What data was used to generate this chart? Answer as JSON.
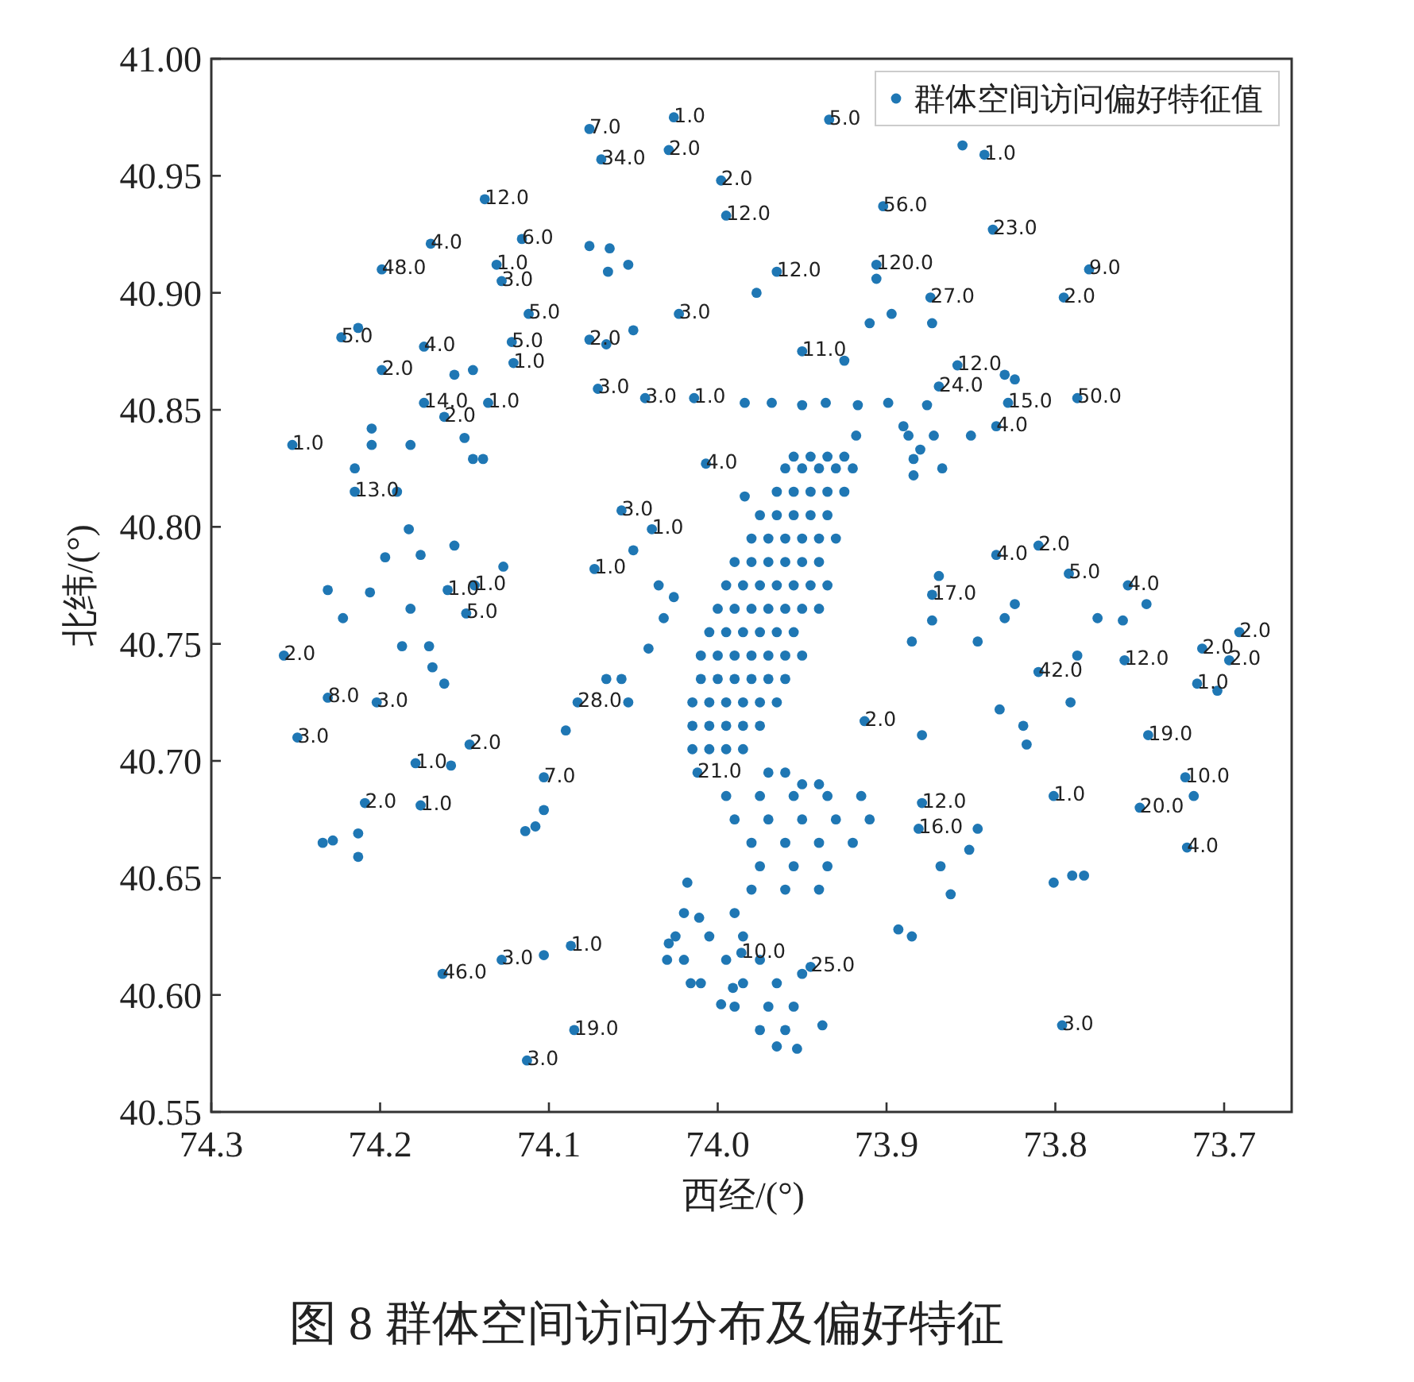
{
  "chart_data": {
    "type": "scatter",
    "xlabel": "西经/(°)",
    "ylabel": "北纬/(°)",
    "annotations": [
      "图 8 群体空间访问分布及偏好特征",
      {
        "text": "7.0",
        "x": 74.076,
        "y": 40.97
      },
      {
        "text": "1.0",
        "x": 74.026,
        "y": 40.975
      },
      {
        "text": "34.0",
        "x": 74.069,
        "y": 40.957
      },
      {
        "text": "2.0",
        "x": 74.029,
        "y": 40.961
      },
      {
        "text": "2.0",
        "x": 73.998,
        "y": 40.948
      },
      {
        "text": "12.0",
        "x": 73.995,
        "y": 40.933
      },
      {
        "text": "12.0",
        "x": 74.138,
        "y": 40.94
      },
      {
        "text": "4.0",
        "x": 74.17,
        "y": 40.921
      },
      {
        "text": "6.0",
        "x": 74.116,
        "y": 40.923
      },
      {
        "text": "48.0",
        "x": 74.199,
        "y": 40.91
      },
      {
        "text": "1.0",
        "x": 74.131,
        "y": 40.912
      },
      {
        "text": "3.0",
        "x": 74.128,
        "y": 40.905
      },
      {
        "text": "5.0",
        "x": 74.223,
        "y": 40.881
      },
      {
        "text": "4.0",
        "x": 74.174,
        "y": 40.877
      },
      {
        "text": "2.0",
        "x": 74.199,
        "y": 40.867
      },
      {
        "text": "5.0",
        "x": 74.112,
        "y": 40.891
      },
      {
        "text": "5.0",
        "x": 74.122,
        "y": 40.879
      },
      {
        "text": "1.0",
        "x": 74.121,
        "y": 40.87
      },
      {
        "text": "2.0",
        "x": 74.076,
        "y": 40.88
      },
      {
        "text": "3.0",
        "x": 74.023,
        "y": 40.891
      },
      {
        "text": "14.0",
        "x": 74.174,
        "y": 40.853
      },
      {
        "text": "2.0",
        "x": 74.162,
        "y": 40.847
      },
      {
        "text": "1.0",
        "x": 74.136,
        "y": 40.853
      },
      {
        "text": "3.0",
        "x": 74.071,
        "y": 40.859
      },
      {
        "text": "3.0",
        "x": 74.043,
        "y": 40.855
      },
      {
        "text": "1.0",
        "x": 74.014,
        "y": 40.855
      },
      {
        "text": "5.0",
        "x": 73.934,
        "y": 40.974
      },
      {
        "text": "1.0",
        "x": 73.842,
        "y": 40.959
      },
      {
        "text": "56.0",
        "x": 73.902,
        "y": 40.937
      },
      {
        "text": "23.0",
        "x": 73.837,
        "y": 40.927
      },
      {
        "text": "9.0",
        "x": 73.78,
        "y": 40.91
      },
      {
        "text": "2.0",
        "x": 73.795,
        "y": 40.898
      },
      {
        "text": "120.0",
        "x": 73.906,
        "y": 40.912
      },
      {
        "text": "12.0",
        "x": 73.965,
        "y": 40.909
      },
      {
        "text": "27.0",
        "x": 73.874,
        "y": 40.898
      },
      {
        "text": "11.0",
        "x": 73.95,
        "y": 40.875
      },
      {
        "text": "24.0",
        "x": 73.869,
        "y": 40.86
      },
      {
        "text": "15.0",
        "x": 73.828,
        "y": 40.853
      },
      {
        "text": "50.0",
        "x": 73.787,
        "y": 40.855
      },
      {
        "text": "12.0",
        "x": 73.858,
        "y": 40.869
      },
      {
        "text": "4.0",
        "x": 73.835,
        "y": 40.843
      },
      {
        "text": "1.0",
        "x": 74.252,
        "y": 40.835
      },
      {
        "text": "4.0",
        "x": 74.007,
        "y": 40.827
      },
      {
        "text": "13.0",
        "x": 74.215,
        "y": 40.815
      },
      {
        "text": "1.0",
        "x": 74.16,
        "y": 40.773
      },
      {
        "text": "1.0",
        "x": 74.144,
        "y": 40.775
      },
      {
        "text": "5.0",
        "x": 74.149,
        "y": 40.763
      },
      {
        "text": "2.0",
        "x": 74.257,
        "y": 40.745
      },
      {
        "text": "8.0",
        "x": 74.231,
        "y": 40.727
      },
      {
        "text": "3.0",
        "x": 74.202,
        "y": 40.725
      },
      {
        "text": "3.0",
        "x": 74.249,
        "y": 40.71
      },
      {
        "text": "1.0",
        "x": 74.179,
        "y": 40.699
      },
      {
        "text": "2.0",
        "x": 74.147,
        "y": 40.707
      },
      {
        "text": "7.0",
        "x": 74.103,
        "y": 40.693
      },
      {
        "text": "3.0",
        "x": 74.057,
        "y": 40.807
      },
      {
        "text": "1.0",
        "x": 74.039,
        "y": 40.799
      },
      {
        "text": "1.0",
        "x": 74.073,
        "y": 40.782
      },
      {
        "text": "28.0",
        "x": 74.083,
        "y": 40.725
      },
      {
        "text": "21.0",
        "x": 74.012,
        "y": 40.695
      },
      {
        "text": "4.0",
        "x": 73.835,
        "y": 40.788
      },
      {
        "text": "2.0",
        "x": 73.81,
        "y": 40.792
      },
      {
        "text": "5.0",
        "x": 73.792,
        "y": 40.78
      },
      {
        "text": "17.0",
        "x": 73.873,
        "y": 40.771
      },
      {
        "text": "4.0",
        "x": 73.757,
        "y": 40.775
      },
      {
        "text": "2.0",
        "x": 73.691,
        "y": 40.755
      },
      {
        "text": "2.0",
        "x": 73.713,
        "y": 40.748
      },
      {
        "text": "2.0",
        "x": 73.697,
        "y": 40.743
      },
      {
        "text": "1.0",
        "x": 73.716,
        "y": 40.733
      },
      {
        "text": "12.0",
        "x": 73.759,
        "y": 40.743
      },
      {
        "text": "42.0",
        "x": 73.81,
        "y": 40.738
      },
      {
        "text": "19.0",
        "x": 73.745,
        "y": 40.711
      },
      {
        "text": "2.0",
        "x": 73.913,
        "y": 40.717
      },
      {
        "text": "10.0",
        "x": 73.723,
        "y": 40.693
      },
      {
        "text": "20.0",
        "x": 73.75,
        "y": 40.68
      },
      {
        "text": "4.0",
        "x": 73.722,
        "y": 40.663
      },
      {
        "text": "1.0",
        "x": 73.801,
        "y": 40.685
      },
      {
        "text": "12.0",
        "x": 73.879,
        "y": 40.682
      },
      {
        "text": "16.0",
        "x": 73.881,
        "y": 40.671
      },
      {
        "text": "3.0",
        "x": 73.796,
        "y": 40.587
      },
      {
        "text": "2.0",
        "x": 74.209,
        "y": 40.682
      },
      {
        "text": "1.0",
        "x": 74.176,
        "y": 40.681
      },
      {
        "text": "46.0",
        "x": 74.163,
        "y": 40.609
      },
      {
        "text": "3.0",
        "x": 74.128,
        "y": 40.615
      },
      {
        "text": "1.0",
        "x": 74.087,
        "y": 40.621
      },
      {
        "text": "19.0",
        "x": 74.085,
        "y": 40.585
      },
      {
        "text": "3.0",
        "x": 74.113,
        "y": 40.572
      },
      {
        "text": "10.0",
        "x": 73.986,
        "y": 40.618
      },
      {
        "text": "25.0",
        "x": 73.945,
        "y": 40.612
      }
    ],
    "xlim": [
      74.3,
      73.66
    ],
    "ylim": [
      40.55,
      41.0
    ],
    "xticks": [
      74.3,
      74.2,
      74.1,
      {
        "value": 74.0,
        "label": "74.0"
      },
      73.9,
      73.8,
      73.7
    ],
    "yticks": [
      {
        "value": 41.0,
        "label": "41.00"
      },
      40.95,
      {
        "value": 40.9,
        "label": "40.90"
      },
      40.85,
      {
        "value": 40.8,
        "label": "40.80"
      },
      40.75,
      {
        "value": 40.7,
        "label": "40.70"
      },
      40.65,
      {
        "value": 40.6,
        "label": "40.60"
      },
      40.55
    ],
    "legend": "top right",
    "marker": "circle",
    "series": [
      {
        "name": "群体空间访问偏好特征值",
        "color": "#1f77b4",
        "x": [
          74.076,
          74.026,
          74.069,
          74.029,
          73.998,
          73.995,
          74.138,
          74.17,
          74.116,
          74.199,
          74.131,
          74.128,
          74.076,
          74.064,
          74.065,
          74.053,
          74.223,
          74.213,
          74.174,
          74.199,
          74.112,
          74.122,
          74.121,
          74.156,
          74.145,
          74.076,
          74.066,
          74.05,
          74.023,
          74.174,
          74.162,
          74.136,
          74.071,
          74.043,
          74.014,
          73.984,
          73.934,
          73.855,
          73.842,
          73.902,
          73.837,
          73.78,
          73.795,
          73.906,
          73.906,
          73.965,
          73.977,
          73.874,
          73.897,
          73.91,
          73.873,
          73.925,
          73.95,
          73.83,
          73.824,
          73.869,
          73.828,
          73.787,
          73.858,
          73.968,
          73.95,
          73.936,
          73.917,
          73.899,
          73.876,
          73.89,
          73.88,
          73.867,
          73.835,
          74.252,
          74.007,
          73.984,
          74.215,
          74.215,
          74.19,
          74.205,
          74.205,
          74.182,
          74.15,
          74.145,
          74.139,
          74.183,
          74.197,
          74.176,
          74.156,
          74.127,
          74.231,
          74.206,
          74.222,
          74.182,
          74.16,
          74.144,
          74.149,
          74.257,
          74.187,
          74.171,
          74.169,
          74.162,
          74.231,
          74.202,
          74.249,
          74.179,
          74.158,
          74.147,
          74.103,
          74.057,
          74.039,
          74.05,
          74.073,
          74.035,
          74.026,
          74.032,
          74.041,
          74.066,
          74.057,
          74.083,
          74.053,
          74.09,
          74.012,
          73.918,
          73.887,
          73.872,
          73.85,
          73.884,
          73.884,
          73.835,
          73.81,
          73.792,
          73.869,
          73.873,
          73.824,
          73.83,
          73.873,
          73.846,
          73.885,
          73.775,
          73.76,
          73.746,
          73.757,
          73.691,
          73.713,
          73.697,
          73.716,
          73.704,
          73.759,
          73.787,
          73.81,
          73.791,
          73.745,
          73.833,
          73.819,
          73.817,
          73.913,
          73.879,
          73.723,
          73.75,
          73.718,
          73.722,
          73.801,
          73.879,
          73.881,
          73.846,
          73.851,
          73.801,
          73.79,
          73.783,
          73.796,
          73.893,
          73.885,
          73.868,
          73.862,
          73.95,
          73.938,
          73.953,
          74.209,
          74.176,
          74.234,
          74.228,
          74.213,
          74.213,
          74.103,
          74.108,
          74.114,
          74.163,
          74.128,
          74.103,
          74.087,
          74.085,
          74.113,
          74.018,
          74.011,
          74.029,
          74.03,
          74.016,
          73.998,
          73.986,
          73.945,
          73.991
        ],
        "values": [
          40.97,
          40.975,
          40.957,
          40.961,
          40.948,
          40.933,
          40.94,
          40.921,
          40.923,
          40.91,
          40.912,
          40.905,
          40.92,
          40.919,
          40.909,
          40.912,
          40.881,
          40.885,
          40.877,
          40.867,
          40.891,
          40.879,
          40.87,
          40.865,
          40.867,
          40.88,
          40.878,
          40.884,
          40.891,
          40.853,
          40.847,
          40.853,
          40.859,
          40.855,
          40.855,
          40.853,
          40.974,
          40.963,
          40.959,
          40.937,
          40.927,
          40.91,
          40.898,
          40.912,
          40.906,
          40.909,
          40.9,
          40.898,
          40.891,
          40.887,
          40.887,
          40.871,
          40.875,
          40.865,
          40.863,
          40.86,
          40.853,
          40.855,
          40.869,
          40.853,
          40.852,
          40.853,
          40.852,
          40.853,
          40.852,
          40.843,
          40.833,
          40.825,
          40.843,
          40.835,
          40.827,
          40.813,
          40.825,
          40.815,
          40.815,
          40.842,
          40.835,
          40.835,
          40.838,
          40.829,
          40.829,
          40.799,
          40.787,
          40.788,
          40.792,
          40.783,
          40.773,
          40.772,
          40.761,
          40.765,
          40.773,
          40.775,
          40.763,
          40.745,
          40.749,
          40.749,
          40.74,
          40.733,
          40.727,
          40.725,
          40.71,
          40.699,
          40.698,
          40.707,
          40.693,
          40.807,
          40.799,
          40.79,
          40.782,
          40.775,
          40.77,
          40.761,
          40.748,
          40.735,
          40.735,
          40.725,
          40.725,
          40.713,
          40.695,
          40.839,
          40.839,
          40.839,
          40.839,
          40.829,
          40.822,
          40.788,
          40.792,
          40.78,
          40.779,
          40.771,
          40.767,
          40.761,
          40.76,
          40.751,
          40.751,
          40.761,
          40.76,
          40.767,
          40.775,
          40.755,
          40.748,
          40.743,
          40.733,
          40.73,
          40.743,
          40.745,
          40.738,
          40.725,
          40.711,
          40.722,
          40.715,
          40.707,
          40.717,
          40.711,
          40.693,
          40.68,
          40.685,
          40.663,
          40.685,
          40.682,
          40.671,
          40.671,
          40.662,
          40.648,
          40.651,
          40.651,
          40.587,
          40.628,
          40.625,
          40.655,
          40.643,
          40.609,
          40.587,
          40.577,
          40.682,
          40.681,
          40.665,
          40.666,
          40.669,
          40.659,
          40.679,
          40.672,
          40.67,
          40.609,
          40.615,
          40.617,
          40.621,
          40.585,
          40.572,
          40.648,
          40.633,
          40.622,
          40.615,
          40.605,
          40.596,
          40.618,
          40.612,
          40.603
        ]
      },
      {
        "color": "#1f77b4",
        "x": [
          73.955,
          73.945,
          73.935,
          73.925,
          73.96,
          73.95,
          73.94,
          73.93,
          73.92,
          73.965,
          73.955,
          73.945,
          73.935,
          73.925,
          73.975,
          73.965,
          73.955,
          73.945,
          73.935,
          73.98,
          73.97,
          73.96,
          73.95,
          73.94,
          73.93,
          73.99,
          73.98,
          73.97,
          73.96,
          73.95,
          73.94,
          73.995,
          73.985,
          73.975,
          73.965,
          73.955,
          73.945,
          73.935,
          74.0,
          73.99,
          73.98,
          73.97,
          73.96,
          73.95,
          73.94,
          74.005,
          73.995,
          73.985,
          73.975,
          73.965,
          73.955,
          74.01,
          74.0,
          73.99,
          73.98,
          73.97,
          73.96,
          73.95,
          74.01,
          74.0,
          73.99,
          73.98,
          73.97,
          73.96,
          74.015,
          74.005,
          73.995,
          73.985,
          73.975,
          73.965,
          74.015,
          74.005,
          73.995,
          73.985,
          73.975,
          74.015,
          74.005,
          73.995,
          73.985,
          73.97,
          73.96,
          73.95,
          73.94,
          73.995,
          73.975,
          73.955,
          73.935,
          73.915,
          73.99,
          73.97,
          73.95,
          73.93,
          73.91,
          73.98,
          73.96,
          73.94,
          73.92,
          73.975,
          73.955,
          73.935,
          73.98,
          73.96,
          73.94,
          74.02,
          73.99,
          74.025,
          74.005,
          73.985,
          74.02,
          73.995,
          73.975,
          74.01,
          73.985,
          73.965,
          73.99,
          73.97,
          73.955,
          73.975,
          73.96,
          73.965
        ],
        "values": [
          40.83,
          40.83,
          40.83,
          40.83,
          40.825,
          40.825,
          40.825,
          40.825,
          40.825,
          40.815,
          40.815,
          40.815,
          40.815,
          40.815,
          40.805,
          40.805,
          40.805,
          40.805,
          40.805,
          40.795,
          40.795,
          40.795,
          40.795,
          40.795,
          40.795,
          40.785,
          40.785,
          40.785,
          40.785,
          40.785,
          40.785,
          40.775,
          40.775,
          40.775,
          40.775,
          40.775,
          40.775,
          40.775,
          40.765,
          40.765,
          40.765,
          40.765,
          40.765,
          40.765,
          40.765,
          40.755,
          40.755,
          40.755,
          40.755,
          40.755,
          40.755,
          40.745,
          40.745,
          40.745,
          40.745,
          40.745,
          40.745,
          40.745,
          40.735,
          40.735,
          40.735,
          40.735,
          40.735,
          40.735,
          40.725,
          40.725,
          40.725,
          40.725,
          40.725,
          40.725,
          40.715,
          40.715,
          40.715,
          40.715,
          40.715,
          40.705,
          40.705,
          40.705,
          40.705,
          40.695,
          40.695,
          40.69,
          40.69,
          40.685,
          40.685,
          40.685,
          40.685,
          40.685,
          40.675,
          40.675,
          40.675,
          40.675,
          40.675,
          40.665,
          40.665,
          40.665,
          40.665,
          40.655,
          40.655,
          40.655,
          40.645,
          40.645,
          40.645,
          40.635,
          40.635,
          40.625,
          40.625,
          40.625,
          40.615,
          40.615,
          40.615,
          40.605,
          40.605,
          40.605,
          40.595,
          40.595,
          40.595,
          40.585,
          40.585,
          40.578
        ]
      }
    ]
  }
}
